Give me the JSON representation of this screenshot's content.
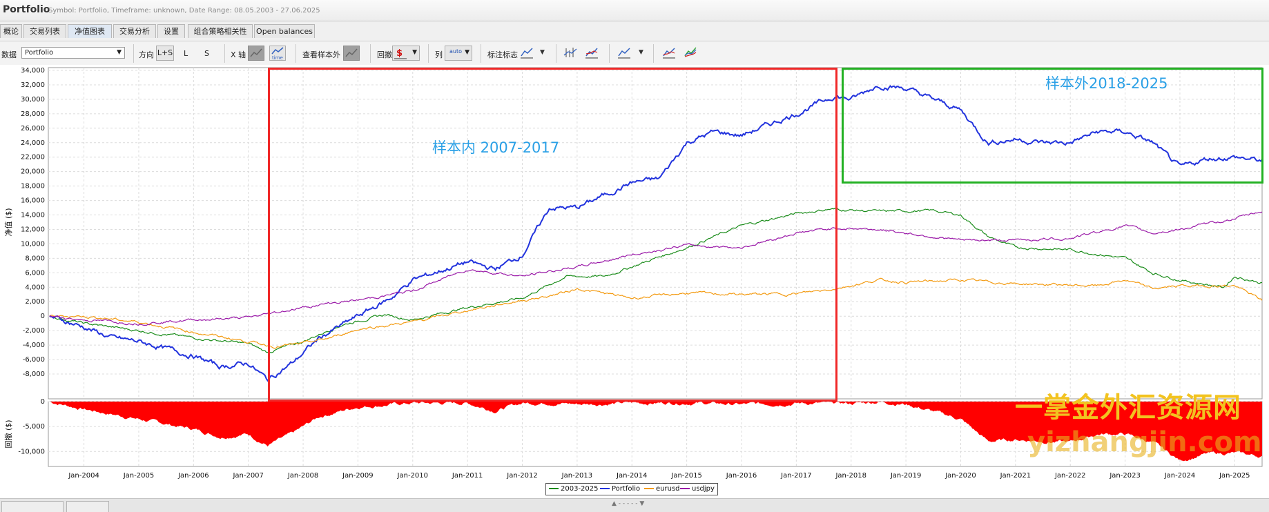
{
  "app": {
    "title": "Portfolio",
    "subtitle": "Symbol: Portfolio, Timeframe: unknown, Date Range: 08.05.2003 - 27.06.2025"
  },
  "tabs": [
    {
      "label": "概论"
    },
    {
      "label": "交易列表"
    },
    {
      "label": "净值图表",
      "active": true
    },
    {
      "label": "交易分析"
    },
    {
      "label": "设置"
    },
    {
      "label": "组合策略相关性"
    },
    {
      "label": "Open balances"
    }
  ],
  "toolbar": {
    "data_label": "数据",
    "data_value": "Portfolio",
    "direction_label": "方向",
    "direction_options": [
      "L+S",
      "L",
      "S"
    ],
    "xaxis_label": "X 轴",
    "time_icon_text": "time",
    "outsample_label": "查看样本外",
    "drawdown_label": "回撤",
    "columns_label": "列",
    "auto_label": "auto",
    "markers_label": "标注标志"
  },
  "chart_data": [
    {
      "type": "line",
      "ylabel": "净值 ($)",
      "ylim": [
        -10000,
        35000
      ],
      "yticks": [
        34000,
        32000,
        30000,
        28000,
        26000,
        24000,
        22000,
        20000,
        18000,
        16000,
        14000,
        12000,
        10000,
        8000,
        6000,
        4000,
        2000,
        0,
        -2000,
        -4000,
        -6000,
        -8000
      ],
      "ytick_labels": [
        "34,000",
        "32,000",
        "30,000",
        "28,000",
        "26,000",
        "24,000",
        "22,000",
        "20,000",
        "18,000",
        "16,000",
        "14,000",
        "12,000",
        "10,000",
        "8,000",
        "6,000",
        "4,000",
        "2,000",
        "0",
        "-2,000",
        "-4,000",
        "-6,000",
        "-8,000"
      ],
      "xlim": [
        2003.35,
        2025.5
      ],
      "x_tick_labels": [
        "Jan-2004",
        "Jan-2005",
        "Jan-2006",
        "Jan-2007",
        "Jan-2008",
        "Jan-2009",
        "Jan-2010",
        "Jan-2011",
        "Jan-2012",
        "Jan-2013",
        "Jan-2014",
        "Jan-2015",
        "Jan-2016",
        "Jan-2017",
        "Jan-2018",
        "Jan-2019",
        "Jan-2020",
        "Jan-2021",
        "Jan-2022",
        "Jan-2023",
        "Jan-2024",
        "Jan-2025"
      ],
      "x_tick_values": [
        2004,
        2005,
        2006,
        2007,
        2008,
        2009,
        2010,
        2011,
        2012,
        2013,
        2014,
        2015,
        2016,
        2017,
        2018,
        2019,
        2020,
        2021,
        2022,
        2023,
        2024,
        2025
      ],
      "grid": true,
      "series": [
        {
          "name": "2003-2025",
          "color": "#1a8c1a",
          "x": [
            2003.37,
            2004.0,
            2005.0,
            2006.0,
            2007.0,
            2007.35,
            2008.0,
            2008.7,
            2009.5,
            2010.0,
            2011.0,
            2012.0,
            2012.8,
            2013.5,
            2014.5,
            2015.0,
            2016.0,
            2017.0,
            2017.6,
            2018.5,
            2019.5,
            2020.0,
            2020.5,
            2021.0,
            2022.0,
            2023.0,
            2023.5,
            2024.0,
            2024.8,
            2025.0,
            2025.5
          ],
          "y": [
            0,
            -1000,
            -2000,
            -3000,
            -3800,
            -5000,
            -3500,
            -1200,
            200,
            -500,
            1200,
            2500,
            5500,
            5500,
            8200,
            9500,
            12500,
            14200,
            14800,
            14500,
            14600,
            14000,
            11000,
            9500,
            9200,
            8000,
            6000,
            5000,
            4000,
            5500,
            4600
          ]
        },
        {
          "name": "Portfolio",
          "color": "#2233dd",
          "x": [
            2003.37,
            2004.0,
            2004.5,
            2005.0,
            2005.5,
            2006.0,
            2006.5,
            2007.0,
            2007.35,
            2007.8,
            2008.3,
            2009.0,
            2009.6,
            2010.0,
            2011.0,
            2011.5,
            2012.0,
            2012.5,
            2013.0,
            2014.0,
            2014.5,
            2015.0,
            2015.5,
            2016.0,
            2017.0,
            2017.7,
            2018.0,
            2018.5,
            2019.0,
            2019.5,
            2020.0,
            2020.5,
            2021.0,
            2021.5,
            2022.0,
            2022.5,
            2023.0,
            2023.5,
            2024.0,
            2024.5,
            2025.0,
            2025.5
          ],
          "y": [
            0,
            -1500,
            -3000,
            -3500,
            -4500,
            -5500,
            -7000,
            -6500,
            -8800,
            -6500,
            -3000,
            0,
            2500,
            5000,
            7500,
            6500,
            8500,
            15000,
            15000,
            18500,
            19000,
            24000,
            25500,
            25000,
            28000,
            30500,
            30000,
            32000,
            31500,
            30000,
            28500,
            24000,
            24500,
            24000,
            24000,
            25500,
            25500,
            24000,
            20500,
            21800,
            22000,
            21500
          ]
        },
        {
          "name": "eurusd",
          "color": "#f39a10",
          "x": [
            2003.37,
            2004.0,
            2005.0,
            2006.0,
            2007.0,
            2007.5,
            2008.0,
            2008.5,
            2009.0,
            2010.0,
            2011.0,
            2012.0,
            2012.5,
            2013.0,
            2014.0,
            2015.0,
            2016.0,
            2017.0,
            2017.7,
            2018.5,
            2019.0,
            2020.0,
            2021.0,
            2022.0,
            2022.5,
            2023.0,
            2023.5,
            2024.0,
            2025.0,
            2025.5
          ],
          "y": [
            0,
            0,
            -800,
            -2200,
            -3500,
            -4200,
            -3800,
            -3000,
            -1800,
            -800,
            800,
            2200,
            2800,
            3800,
            2500,
            3200,
            3000,
            3100,
            3800,
            5000,
            4700,
            5000,
            4500,
            4300,
            4200,
            5000,
            3800,
            4200,
            4200,
            2200
          ]
        },
        {
          "name": "usdjpy",
          "color": "#9a19a8",
          "x": [
            2003.37,
            2004.0,
            2005.0,
            2006.0,
            2007.0,
            2007.5,
            2008.0,
            2008.5,
            2009.0,
            2010.0,
            2011.0,
            2012.0,
            2012.5,
            2013.0,
            2014.0,
            2015.0,
            2016.0,
            2017.0,
            2017.7,
            2018.5,
            2019.0,
            2020.0,
            2021.0,
            2022.0,
            2023.0,
            2023.5,
            2024.0,
            2025.0,
            2025.5
          ],
          "y": [
            0,
            -500,
            -1000,
            -500,
            -200,
            500,
            1200,
            1800,
            2200,
            3500,
            6500,
            5500,
            6200,
            6800,
            8500,
            9800,
            9500,
            11500,
            12200,
            12000,
            11500,
            10500,
            10500,
            10800,
            12500,
            11500,
            12000,
            13500,
            14500
          ]
        }
      ]
    },
    {
      "type": "area",
      "ylabel": "回撤 ($)",
      "ylim": [
        -13000,
        0
      ],
      "yticks": [
        0,
        -5000,
        -10000
      ],
      "ytick_labels": [
        "0",
        "-5,000",
        "-10,000"
      ],
      "series": [
        {
          "name": "drawdown",
          "color": "#ff0000",
          "x": [
            2003.37,
            2004.0,
            2005.0,
            2006.0,
            2006.5,
            2007.0,
            2007.35,
            2007.8,
            2008.3,
            2009.0,
            2009.6,
            2010.0,
            2011.0,
            2011.5,
            2012.0,
            2012.5,
            2013.0,
            2014.0,
            2015.0,
            2016.0,
            2017.0,
            2018.0,
            2018.5,
            2019.0,
            2019.5,
            2020.0,
            2020.5,
            2021.0,
            2022.0,
            2022.5,
            2023.0,
            2023.5,
            2024.0,
            2024.5,
            2025.0,
            2025.5
          ],
          "y": [
            0,
            -1500,
            -3500,
            -5500,
            -7000,
            -6500,
            -8800,
            -6500,
            -3000,
            -1000,
            -600,
            -300,
            -300,
            -1800,
            -300,
            -200,
            -500,
            -300,
            -200,
            -600,
            -300,
            -400,
            0,
            -500,
            -2000,
            -3500,
            -8000,
            -7600,
            -8200,
            -6500,
            -6500,
            -8200,
            -11800,
            -10500,
            -10300,
            -11000
          ]
        }
      ]
    }
  ],
  "legend": [
    "2003-2025",
    "Portfolio",
    "eurusd",
    "usdjpy"
  ],
  "annotations": {
    "in_sample": "样本内 2007-2017",
    "out_sample": "样本外2018-2025"
  },
  "watermark": {
    "line1": "一掌金外汇资源网",
    "line2": "yizhangjin.com"
  },
  "icons": [
    "dropdown-arrow-icon",
    "time-axis-icon",
    "dollar-drawdown-icon",
    "line-chart-icon",
    "bar-chart-icon",
    "multi-line-chart-icon"
  ]
}
